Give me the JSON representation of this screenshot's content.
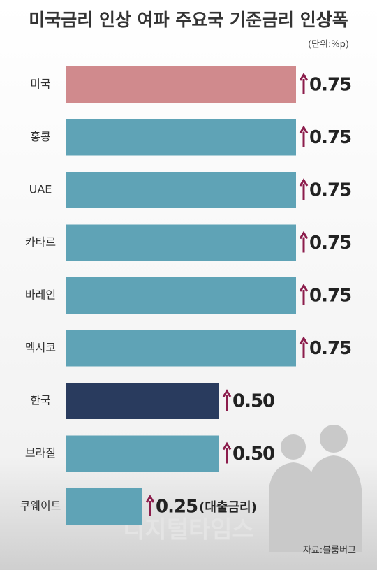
{
  "chart_data": {
    "type": "hbar",
    "title": "미국금리 인상 여파 주요국 기준금리 인상폭",
    "unit": "(단위:%p)",
    "categories": [
      "미국",
      "홍콩",
      "UAE",
      "카타르",
      "바레인",
      "멕시코",
      "한국",
      "브라질",
      "쿠웨이트"
    ],
    "values": [
      0.75,
      0.75,
      0.75,
      0.75,
      0.75,
      0.75,
      0.5,
      0.5,
      0.25
    ],
    "value_labels": [
      "0.75",
      "0.75",
      "0.75",
      "0.75",
      "0.75",
      "0.75",
      "0.50",
      "0.50",
      "0.25"
    ],
    "colors": [
      "#d08a8d",
      "#5fa3b6",
      "#5fa3b6",
      "#5fa3b6",
      "#5fa3b6",
      "#5fa3b6",
      "#293b5e",
      "#5fa3b6",
      "#5fa3b6"
    ],
    "annotation": "(대출금리)",
    "xlim": [
      0,
      0.75
    ],
    "source": "자료:블룸버그",
    "watermark": "디지털타임스"
  }
}
